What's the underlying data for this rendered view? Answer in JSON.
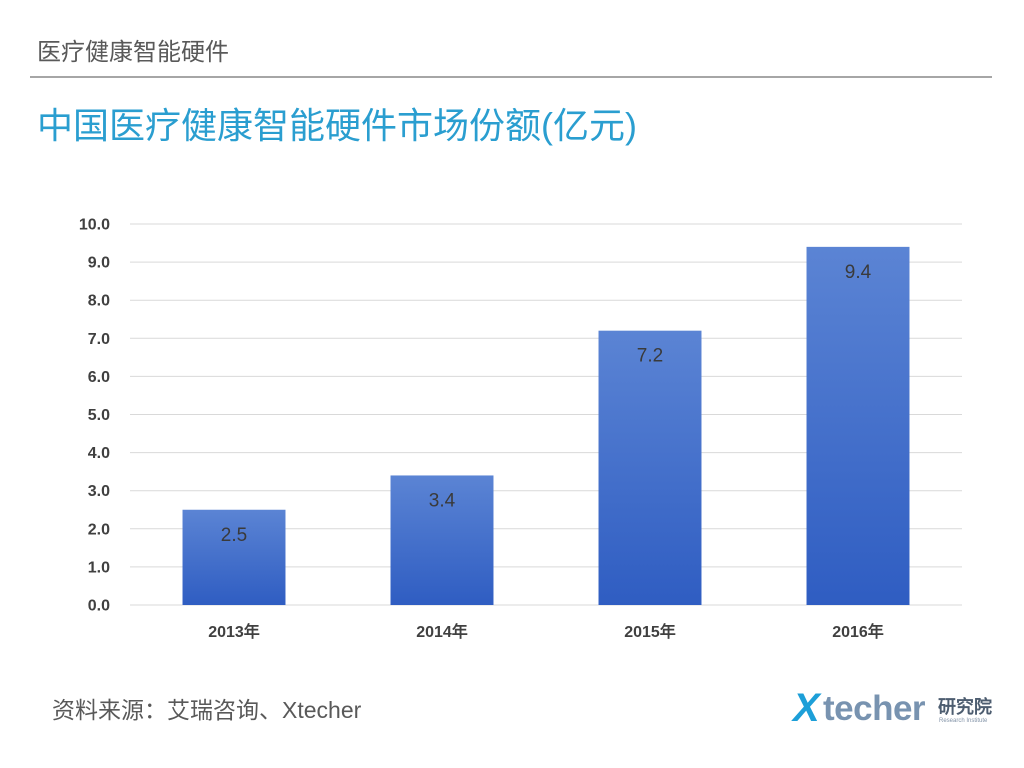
{
  "header": {
    "section_title": "医疗健康智能硬件"
  },
  "chart_data": {
    "type": "bar",
    "title": "中国医疗健康智能硬件市场份额(亿元)",
    "categories": [
      "2013年",
      "2014年",
      "2015年",
      "2016年"
    ],
    "values": [
      2.5,
      3.4,
      7.2,
      9.4
    ],
    "y_tick_labels": [
      "0.0",
      "1.0",
      "2.0",
      "3.0",
      "4.0",
      "5.0",
      "6.0",
      "7.0",
      "8.0",
      "9.0",
      "10.0"
    ],
    "ylim": [
      0,
      10
    ],
    "y_tick_step": 1,
    "grid": true,
    "show_legend": false,
    "bar_color_top": "#5b84d4",
    "bar_color_bottom": "#2f5dc2"
  },
  "footer": {
    "source": "资料来源：艾瑞咨询、Xtecher"
  },
  "logo": {
    "mark": "X",
    "word": "techer",
    "cn": "研究院",
    "sub": "Research Institute"
  },
  "colors": {
    "title": "#2a9ed0",
    "header_text": "#595959",
    "divider": "#a6a6a6",
    "gridline": "#d9d9d9",
    "logo_mark": "#1d9fd8",
    "logo_word": "#7893b0"
  }
}
